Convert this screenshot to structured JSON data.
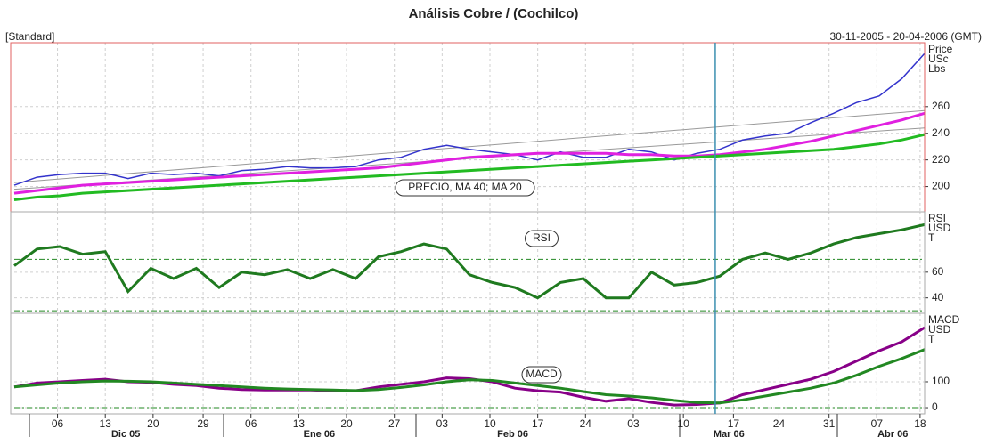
{
  "title": "Análisis Cobre / (Cochilco)",
  "mode": "[Standard]",
  "range": "30-11-2005 - 20-04-2006 (GMT)",
  "x_axis": {
    "x": [
      0,
      1,
      2,
      3,
      4,
      5,
      6,
      7,
      8,
      9,
      10,
      11,
      12,
      13,
      14,
      15,
      16,
      17,
      18,
      19,
      20,
      21,
      22,
      23,
      24,
      25,
      26,
      27,
      28,
      29,
      30,
      31,
      32,
      33,
      34,
      35,
      36,
      37,
      38,
      39,
      40
    ],
    "xlim": [
      0,
      40
    ],
    "xticks": [
      {
        "value": 1.9,
        "label": "06"
      },
      {
        "value": 4.0,
        "label": "13"
      },
      {
        "value": 6.1,
        "label": "20"
      },
      {
        "value": 8.3,
        "label": "29"
      },
      {
        "value": 10.4,
        "label": "06"
      },
      {
        "value": 12.5,
        "label": "13"
      },
      {
        "value": 14.6,
        "label": "20"
      },
      {
        "value": 16.7,
        "label": "27"
      },
      {
        "value": 18.8,
        "label": "03"
      },
      {
        "value": 20.9,
        "label": "10"
      },
      {
        "value": 23.0,
        "label": "17"
      },
      {
        "value": 25.1,
        "label": "24"
      },
      {
        "value": 27.2,
        "label": "03"
      },
      {
        "value": 29.4,
        "label": "10"
      },
      {
        "value": 31.6,
        "label": "17"
      },
      {
        "value": 33.6,
        "label": "24"
      },
      {
        "value": 35.8,
        "label": "31"
      },
      {
        "value": 37.9,
        "label": "07"
      },
      {
        "value": 39.8,
        "label": "18"
      }
    ],
    "months": [
      {
        "value": 4.9,
        "label": "Dic 05"
      },
      {
        "value": 13.4,
        "label": "Ene 06"
      },
      {
        "value": 21.9,
        "label": "Feb 06"
      },
      {
        "value": 31.4,
        "label": "Mar 06"
      },
      {
        "value": 38.6,
        "label": "Abr 06"
      }
    ],
    "cursor_x": 30.8,
    "cursor_color": "#3b8fb0"
  },
  "chart_data": [
    {
      "type": "line",
      "label": "PRECIO, MA 40; MA 20",
      "axis_label": [
        "Price",
        "USc",
        "Lbs"
      ],
      "ylim": [
        181,
        308
      ],
      "yticks": [
        200,
        220,
        240,
        260
      ],
      "grid": true,
      "series": [
        {
          "color": "#3333cc",
          "values": [
            201,
            207,
            209,
            210,
            210,
            206,
            210,
            209,
            210,
            208,
            212,
            213,
            215,
            214,
            214,
            215,
            220,
            222,
            228,
            231,
            228,
            226,
            224,
            220,
            226,
            222,
            222,
            228,
            226,
            220,
            225,
            228,
            235,
            238,
            240,
            248,
            255,
            263,
            268,
            281,
            300
          ]
        },
        {
          "color": "#e020e0",
          "values": [
            195,
            197,
            199,
            201,
            202,
            203,
            204,
            205,
            206,
            207,
            208,
            209,
            210,
            211,
            212,
            213,
            214,
            216,
            218,
            220,
            222,
            223,
            224,
            225,
            225,
            225,
            225,
            224,
            224,
            223,
            223,
            224,
            226,
            228,
            231,
            234,
            238,
            242,
            246,
            250,
            255
          ]
        },
        {
          "color": "#22bb22",
          "values": [
            190,
            192,
            193,
            195,
            196,
            197,
            198,
            199,
            200,
            201,
            202,
            203,
            204,
            205,
            206,
            207,
            208,
            209,
            210,
            211,
            212,
            213,
            214,
            215,
            216,
            217,
            218,
            219,
            220,
            221,
            222,
            223,
            224,
            225,
            226,
            227,
            228,
            230,
            232,
            235,
            239
          ]
        }
      ],
      "trendlines": [
        {
          "start": 203,
          "end": 257,
          "color": "#999999"
        },
        {
          "start": 198,
          "end": 244,
          "color": "#999999"
        }
      ]
    },
    {
      "type": "line",
      "label": "RSI",
      "axis_label": [
        "RSI",
        "USD",
        "T"
      ],
      "ylim": [
        28,
        107
      ],
      "yticks": [
        40,
        60
      ],
      "grid": true,
      "reference_lines": [
        70,
        30
      ],
      "reference_color": "#228822",
      "series": [
        {
          "color": "#1f7a1f",
          "values": [
            65,
            78,
            80,
            74,
            76,
            45,
            63,
            55,
            63,
            48,
            60,
            58,
            62,
            55,
            62,
            55,
            72,
            76,
            82,
            78,
            58,
            52,
            48,
            40,
            52,
            55,
            40,
            40,
            60,
            50,
            52,
            57,
            70,
            75,
            70,
            75,
            82,
            87,
            90,
            93,
            97
          ]
        }
      ]
    },
    {
      "type": "line",
      "label": "MACD",
      "axis_label": [
        "MACD",
        "USD",
        "T"
      ],
      "ylim": [
        -24,
        365
      ],
      "yticks": [
        0,
        100
      ],
      "grid": true,
      "reference_lines": [
        0
      ],
      "reference_color": "#228822",
      "series": [
        {
          "color": "#880088",
          "values": [
            80,
            95,
            100,
            105,
            110,
            100,
            98,
            90,
            85,
            75,
            70,
            68,
            68,
            68,
            65,
            65,
            80,
            90,
            100,
            115,
            112,
            100,
            75,
            65,
            60,
            40,
            25,
            35,
            20,
            10,
            12,
            18,
            50,
            70,
            90,
            110,
            140,
            180,
            220,
            255,
            310
          ]
        },
        {
          "color": "#228822",
          "values": [
            80,
            88,
            95,
            100,
            103,
            102,
            100,
            95,
            90,
            85,
            80,
            75,
            72,
            70,
            68,
            66,
            70,
            78,
            88,
            100,
            108,
            105,
            95,
            85,
            75,
            62,
            50,
            45,
            38,
            28,
            20,
            18,
            30,
            45,
            60,
            75,
            95,
            125,
            160,
            190,
            225
          ]
        }
      ]
    }
  ]
}
